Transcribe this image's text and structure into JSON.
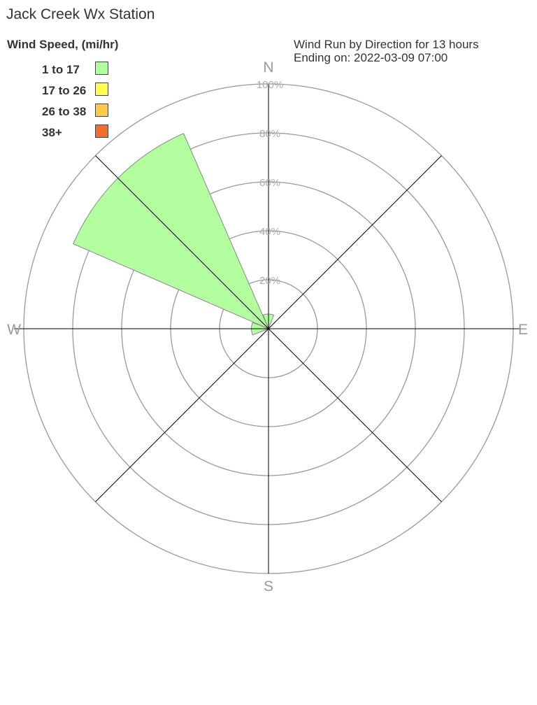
{
  "title": "Jack Creek Wx Station",
  "subtitle_line1": "Wind Run by Direction for 13 hours",
  "subtitle_line2": "Ending on: 2022-03-09 07:00",
  "chart_data": {
    "type": "windrose",
    "legend_title": "Wind Speed, (mi/hr)",
    "legend": [
      {
        "label": "1 to 17",
        "color": "#b3ffa0"
      },
      {
        "label": "17 to 26",
        "color": "#ffff50"
      },
      {
        "label": "26 to 38",
        "color": "#f8cc48"
      },
      {
        "label": "38+",
        "color": "#f07030"
      }
    ],
    "directions": [
      "N",
      "NE",
      "E",
      "SE",
      "S",
      "SW",
      "W",
      "NW"
    ],
    "compass_labels": {
      "N": "N",
      "E": "E",
      "S": "S",
      "W": "W"
    },
    "ring_labels": [
      "20%",
      "40%",
      "60%",
      "80%",
      "100%"
    ],
    "rlim": [
      0,
      100
    ],
    "series": [
      {
        "name": "1 to 17",
        "values": [
          6,
          0,
          0,
          0,
          0,
          0,
          7,
          87
        ]
      },
      {
        "name": "17 to 26",
        "values": [
          0,
          0,
          0,
          0,
          0,
          0,
          0,
          0
        ]
      },
      {
        "name": "26 to 38",
        "values": [
          0,
          0,
          0,
          0,
          0,
          0,
          0,
          0
        ]
      },
      {
        "name": "38+",
        "values": [
          0,
          0,
          0,
          0,
          0,
          0,
          0,
          0
        ]
      }
    ]
  }
}
